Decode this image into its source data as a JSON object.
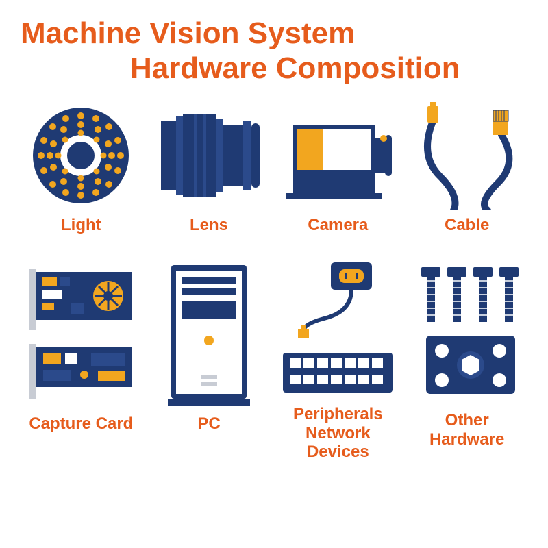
{
  "type": "infographic",
  "background_color": "#ffffff",
  "colors": {
    "accent": "#e65c1c",
    "primary": "#1f3a73",
    "secondary": "#f2a61f",
    "white": "#ffffff",
    "shade": "#2b4a8b"
  },
  "title": {
    "line1": "Machine Vision System",
    "line2": "Hardware Composition",
    "font_size": 44,
    "font_weight": 700,
    "color": "#e65c1c"
  },
  "label_style": {
    "font_size": 24,
    "font_weight": 700,
    "color": "#e65c1c"
  },
  "items": [
    {
      "id": "light",
      "label": "Light"
    },
    {
      "id": "lens",
      "label": "Lens"
    },
    {
      "id": "camera",
      "label": "Camera"
    },
    {
      "id": "cable",
      "label": "Cable"
    },
    {
      "id": "capture",
      "label": "Capture Card"
    },
    {
      "id": "pc",
      "label": "PC"
    },
    {
      "id": "network",
      "label": "Peripherals\nNetwork Devices"
    },
    {
      "id": "other",
      "label": "Other Hardware"
    }
  ]
}
